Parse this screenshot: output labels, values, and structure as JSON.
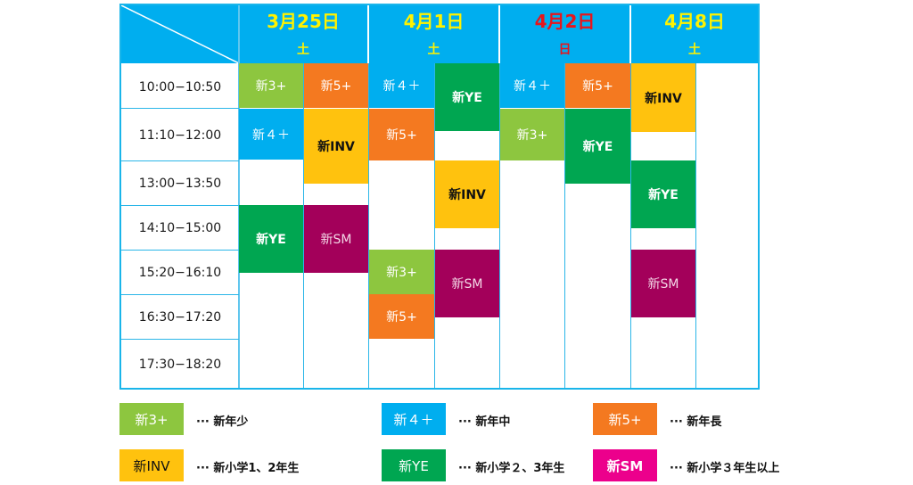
{
  "schedule": {
    "dates": [
      {
        "date": "3月25日",
        "dow": "土",
        "color": "#fff200"
      },
      {
        "date": "4月1日",
        "dow": "土",
        "color": "#fff200"
      },
      {
        "date": "4月2日",
        "dow": "日",
        "color": "#e8151b"
      },
      {
        "date": "4月8日",
        "dow": "土",
        "color": "#fff200"
      }
    ],
    "times": [
      "10:00−10:50",
      "11:10−12:00",
      "13:00−13:50",
      "14:10−15:00",
      "15:20−16:10",
      "16:30−17:20",
      "17:30−18:20"
    ],
    "blocks": {
      "c1_3plus": "新3+",
      "c2_5plus": "新5+",
      "c1_4plus": "新４＋",
      "c2_inv": "新INV",
      "c1_ye": "新YE",
      "c2_sm": "新SM",
      "c3_4plus": "新４＋",
      "c4_ye": "新YE",
      "c3_5plus": "新5+",
      "c4_inv": "新INV",
      "c3_3plus": "新3+",
      "c4_sm": "新SM",
      "c3_5plus_b": "新5+",
      "c5_4plus": "新４＋",
      "c6_5plus": "新5+",
      "c5_3plus": "新3+",
      "c6_ye": "新YE",
      "c7_inv": "新INV",
      "c7_ye": "新YE",
      "c7_sm": "新SM"
    }
  },
  "legend": [
    {
      "label": "新3+",
      "desc": "··· 新年少"
    },
    {
      "label": "新４＋",
      "desc": "··· 新年中"
    },
    {
      "label": "新5+",
      "desc": "··· 新年長"
    },
    {
      "label": "新INV",
      "desc": "··· 新小学1、2年生"
    },
    {
      "label": "新YE",
      "desc": "··· 新小学２、3年生"
    },
    {
      "label": "新SM",
      "desc": "··· 新小学３年生以上"
    }
  ]
}
